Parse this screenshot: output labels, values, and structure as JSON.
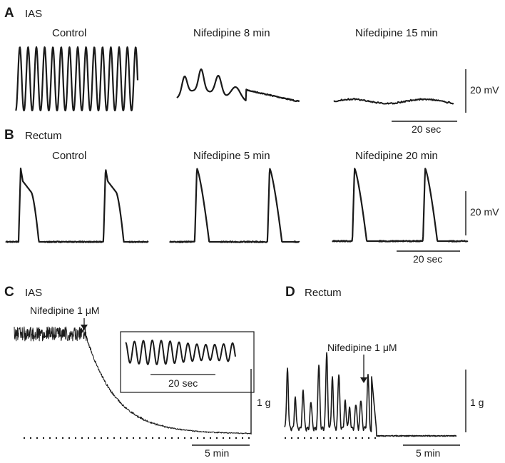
{
  "panels": [
    {
      "letter": "A",
      "title": "IAS",
      "traces": [
        {
          "label": "Control"
        },
        {
          "label": "Nifedipine 8 min"
        },
        {
          "label": "Nifedipine 15 min"
        }
      ],
      "scale": {
        "vertical": "20 mV",
        "horizontal": "20 sec"
      }
    },
    {
      "letter": "B",
      "title": "Rectum",
      "traces": [
        {
          "label": "Control"
        },
        {
          "label": "Nifedipine 5 min"
        },
        {
          "label": "Nifedipine 20 min"
        }
      ],
      "scale": {
        "vertical": "20 mV",
        "horizontal": "20 sec"
      }
    },
    {
      "letter": "C",
      "title": "IAS",
      "annotation": "Nifedipine 1 μM",
      "inset_scale": "20 sec",
      "scale": {
        "vertical": "1 g",
        "horizontal": "5 min"
      }
    },
    {
      "letter": "D",
      "title": "Rectum",
      "annotation": "Nifedipine 1 μM",
      "scale": {
        "vertical": "1 g",
        "horizontal": "5 min"
      }
    }
  ]
}
